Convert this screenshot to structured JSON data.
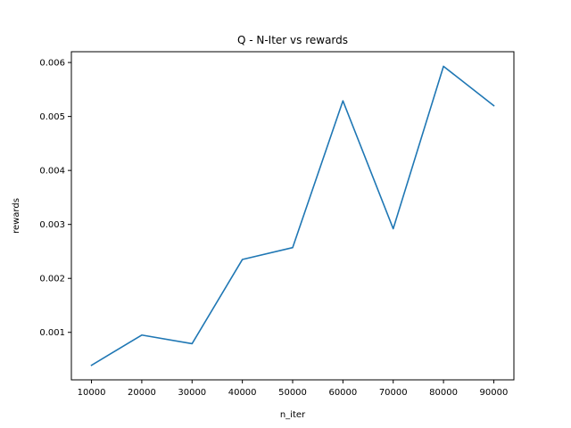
{
  "chart_data": {
    "type": "line",
    "title": "Q - N-Iter vs rewards",
    "xlabel": "n_iter",
    "ylabel": "rewards",
    "x": [
      10000,
      20000,
      30000,
      40000,
      50000,
      60000,
      70000,
      80000,
      90000
    ],
    "x_tick_labels": [
      "10000",
      "20000",
      "30000",
      "40000",
      "50000",
      "60000",
      "70000",
      "80000",
      "90000"
    ],
    "y_ticks": [
      0.001,
      0.002,
      0.003,
      0.004,
      0.005,
      0.006
    ],
    "y_tick_labels": [
      "0.001",
      "0.002",
      "0.003",
      "0.004",
      "0.005",
      "0.006"
    ],
    "series": [
      {
        "values": [
          0.00039,
          0.00095,
          0.00079,
          0.00235,
          0.00257,
          0.00529,
          0.00292,
          0.00593,
          0.0052
        ],
        "color": "#1f77b4"
      }
    ],
    "xlim": [
      6000,
      94000
    ],
    "ylim": [
      0.00012,
      0.0062
    ],
    "grid": false,
    "legend": "none"
  }
}
